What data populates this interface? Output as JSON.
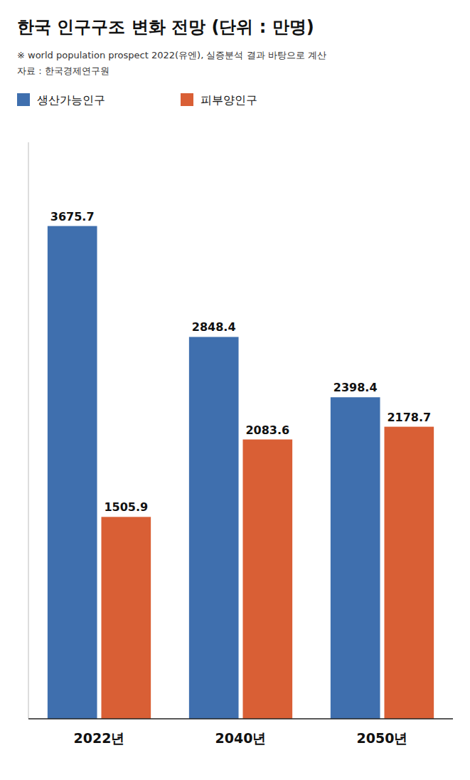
{
  "chart_data": {
    "type": "bar",
    "title": "한국 인구구조 변화 전망 (단위 : 만명)",
    "subtitle": [
      "※ world population prospect 2022(유엔), 실증분석 결과 바탕으로 계산",
      "자료 : 한국경제연구원"
    ],
    "categories": [
      "2022년",
      "2040년",
      "2050년"
    ],
    "series": [
      {
        "name": "생산가능인구",
        "color": "#3f6fae",
        "values": [
          3675.7,
          2848.4,
          2398.4
        ]
      },
      {
        "name": "피부양인구",
        "color": "#d95f35",
        "values": [
          1505.9,
          2083.6,
          2178.7
        ]
      }
    ],
    "ylim": [
      0,
      4300
    ],
    "grid": false,
    "legend": "top",
    "data_labels": true,
    "tick_labels": "x"
  }
}
